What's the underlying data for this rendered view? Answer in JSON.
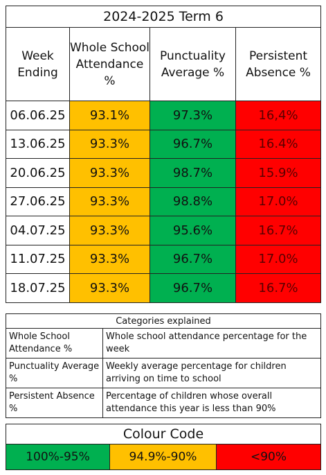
{
  "title": "2024-2025 Term 6",
  "table": {
    "headers": [
      "Week Ending",
      "Whole School Attendance %",
      "Punctuality Average %",
      "Persistent Absence %"
    ],
    "rows": [
      [
        "06.06.25",
        "93.1%",
        "97.3%",
        "16,4%"
      ],
      [
        "13.06.25",
        "93.3%",
        "96.7%",
        "16.4%"
      ],
      [
        "20.06.25",
        "93.3%",
        "98.7%",
        "15.9%"
      ],
      [
        "27.06.25",
        "93.3%",
        "98.8%",
        "17.0%"
      ],
      [
        "04.07.25",
        "93.3%",
        "95.6%",
        "16.7%"
      ],
      [
        "11.07.25",
        "93.3%",
        "96.7%",
        "17.0%"
      ],
      [
        "18.07.25",
        "93.3%",
        "96.7%",
        "16.7%"
      ]
    ]
  },
  "categories": {
    "title": "Categories explained",
    "rows": [
      [
        "Whole School Attendance %",
        "Whole school attendance percentage for the week"
      ],
      [
        "Punctuality Average %",
        "Weekly average percentage for children arriving on time to school"
      ],
      [
        "Persistent Absence %",
        "Percentage of children whose overall attendance this year is less than 90%"
      ]
    ]
  },
  "colour_code": {
    "title": "Colour Code",
    "items": [
      "100%-95%",
      "94.9%-90%",
      "<90%"
    ]
  }
}
